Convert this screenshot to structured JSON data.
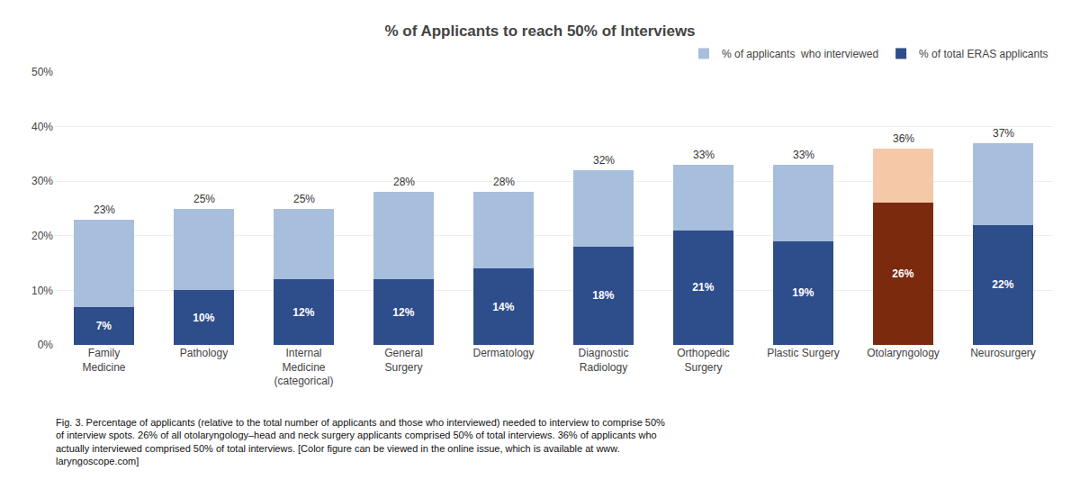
{
  "chart_data": {
    "type": "bar",
    "title": "% of Applicants to reach 50% of Interviews",
    "categories": [
      "Family\nMedicine",
      "Pathology",
      "Internal\nMedicine\n(categorical)",
      "General\nSurgery",
      "Dermatology",
      "Diagnostic\nRadiology",
      "Orthopedic\nSurgery",
      "Plastic Surgery",
      "Otolaryngology",
      "Neurosurgery"
    ],
    "stacked": true,
    "data_labels": true,
    "series": [
      {
        "name": "% of total ERAS applicants",
        "colors": [
          "#2E4D8B",
          "#2E4D8B",
          "#2E4D8B",
          "#2E4D8B",
          "#2E4D8B",
          "#2E4D8B",
          "#2E4D8B",
          "#2E4D8B",
          "#7B2A0E",
          "#2E4D8B"
        ],
        "values": [
          7,
          10,
          12,
          12,
          14,
          18,
          21,
          19,
          26,
          22
        ],
        "value_labels": [
          "7%",
          "10%",
          "12%",
          "12%",
          "14%",
          "18%",
          "21%",
          "19%",
          "26%",
          "22%"
        ]
      },
      {
        "name": "% of applicants  who interviewed",
        "colors": [
          "#A8BEDD",
          "#A8BEDD",
          "#A8BEDD",
          "#A8BEDD",
          "#A8BEDD",
          "#A8BEDD",
          "#A8BEDD",
          "#A8BEDD",
          "#F5C9A8",
          "#A8BEDD"
        ],
        "values": [
          16,
          15,
          13,
          16,
          14,
          14,
          12,
          14,
          10,
          15
        ]
      }
    ],
    "totals": [
      23,
      25,
      25,
      28,
      28,
      32,
      33,
      33,
      36,
      37
    ],
    "total_labels": [
      "23%",
      "25%",
      "25%",
      "28%",
      "28%",
      "32%",
      "33%",
      "33%",
      "36%",
      "37%"
    ],
    "ylim": [
      0,
      50
    ],
    "yticks": [
      {
        "value": 0,
        "label": "0%"
      },
      {
        "value": 10,
        "label": "10%"
      },
      {
        "value": 20,
        "label": "20%"
      },
      {
        "value": 30,
        "label": "30%"
      },
      {
        "value": 40,
        "label": "40%"
      },
      {
        "value": 50,
        "label": "50%"
      }
    ],
    "grid": true,
    "legend": "upper right",
    "caption": [
      "Fig. 3. Percentage of applicants (relative to the total number of applicants and those who interviewed) needed to interview to comprise 50%",
      "of interview spots. 26% of all otolaryngology–head and neck surgery applicants comprised 50% of total interviews. 36% of applicants who",
      "actually interviewed comprised 50% of total interviews. [Color figure can be viewed in the online issue, which is available at www.",
      "laryngoscope.com]"
    ]
  }
}
